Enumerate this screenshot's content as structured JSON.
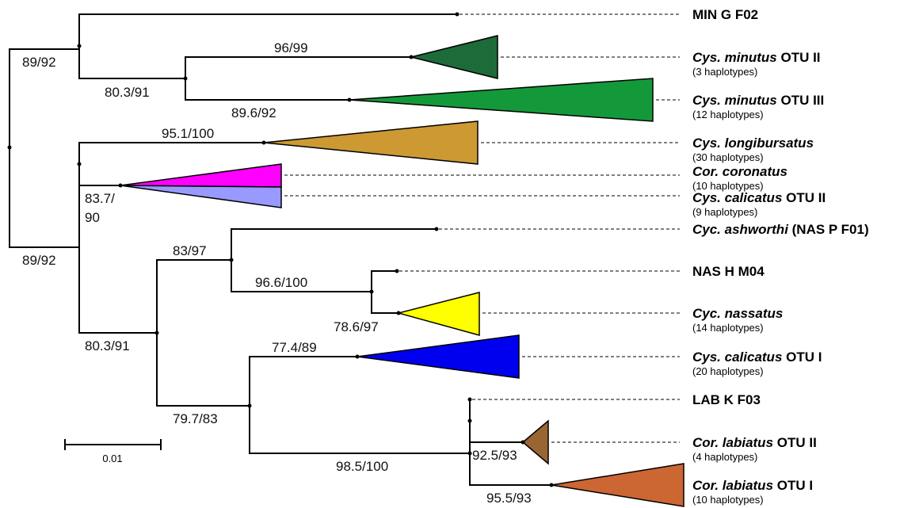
{
  "colors": {
    "minutus_otu2": "#1e6b3a",
    "minutus_otu3": "#14993a",
    "longibursatus": "#cc9933",
    "coronatus": "#ff00ff",
    "calicatus_otu2": "#9999ff",
    "nassatus": "#ffff00",
    "calicatus_otu1": "#0000ee",
    "labiatus_otu2": "#996633",
    "labiatus_otu1": "#cc6633"
  },
  "taxa": {
    "min_g": {
      "plain": "MIN G F02"
    },
    "minutus2": {
      "italic": "Cys. minutus",
      "plain": " OTU II",
      "sub": "(3 haplotypes)"
    },
    "minutus3": {
      "italic": "Cys. minutus",
      "plain": " OTU III",
      "sub": "(12 haplotypes)"
    },
    "longibursatus": {
      "italic": "Cys. longibursatus",
      "sub": "(30 haplotypes)"
    },
    "coronatus": {
      "italic": "Cor. coronatus",
      "sub": "(10 haplotypes)"
    },
    "calicatus2": {
      "italic": "Cys. calicatus",
      "plain": " OTU II",
      "sub": "(9 haplotypes)"
    },
    "ashworthi": {
      "italic": "Cyc. ashworthi",
      "plain": " (NAS P F01)"
    },
    "nas_h": {
      "plain": "NAS H M04"
    },
    "nassatus": {
      "italic": "Cyc. nassatus",
      "sub": "(14 haplotypes)"
    },
    "calicatus1": {
      "italic": "Cys. calicatus",
      "plain": " OTU I",
      "sub": "(20 haplotypes)"
    },
    "lab_k": {
      "plain": "LAB K F03"
    },
    "labiatus2": {
      "italic": "Cor. labiatus",
      "plain": " OTU II",
      "sub": "(4 haplotypes)"
    },
    "labiatus1": {
      "italic": "Cor. labiatus",
      "plain": " OTU I",
      "sub": "(10 haplotypes)"
    }
  },
  "support": {
    "root_top": "89/92",
    "root_bottom": "89/92",
    "minutus_split": "80.3/91",
    "minutus2": "96/99",
    "minutus3": "89.6/92",
    "longibursatus": "95.1/100",
    "coronatus_calicatus_a": "83.7/",
    "coronatus_calicatus_b": "90",
    "lower_split": "80.3/91",
    "nas_clade": "83/97",
    "nas_sub": "96.6/100",
    "nassatus": "78.6/97",
    "cal1_lab": "79.7/83",
    "calicatus1": "77.4/89",
    "labiatus_clade": "98.5/100",
    "labiatus2": "92.5/93",
    "labiatus1": "95.5/93"
  },
  "scale_label": "0.01"
}
